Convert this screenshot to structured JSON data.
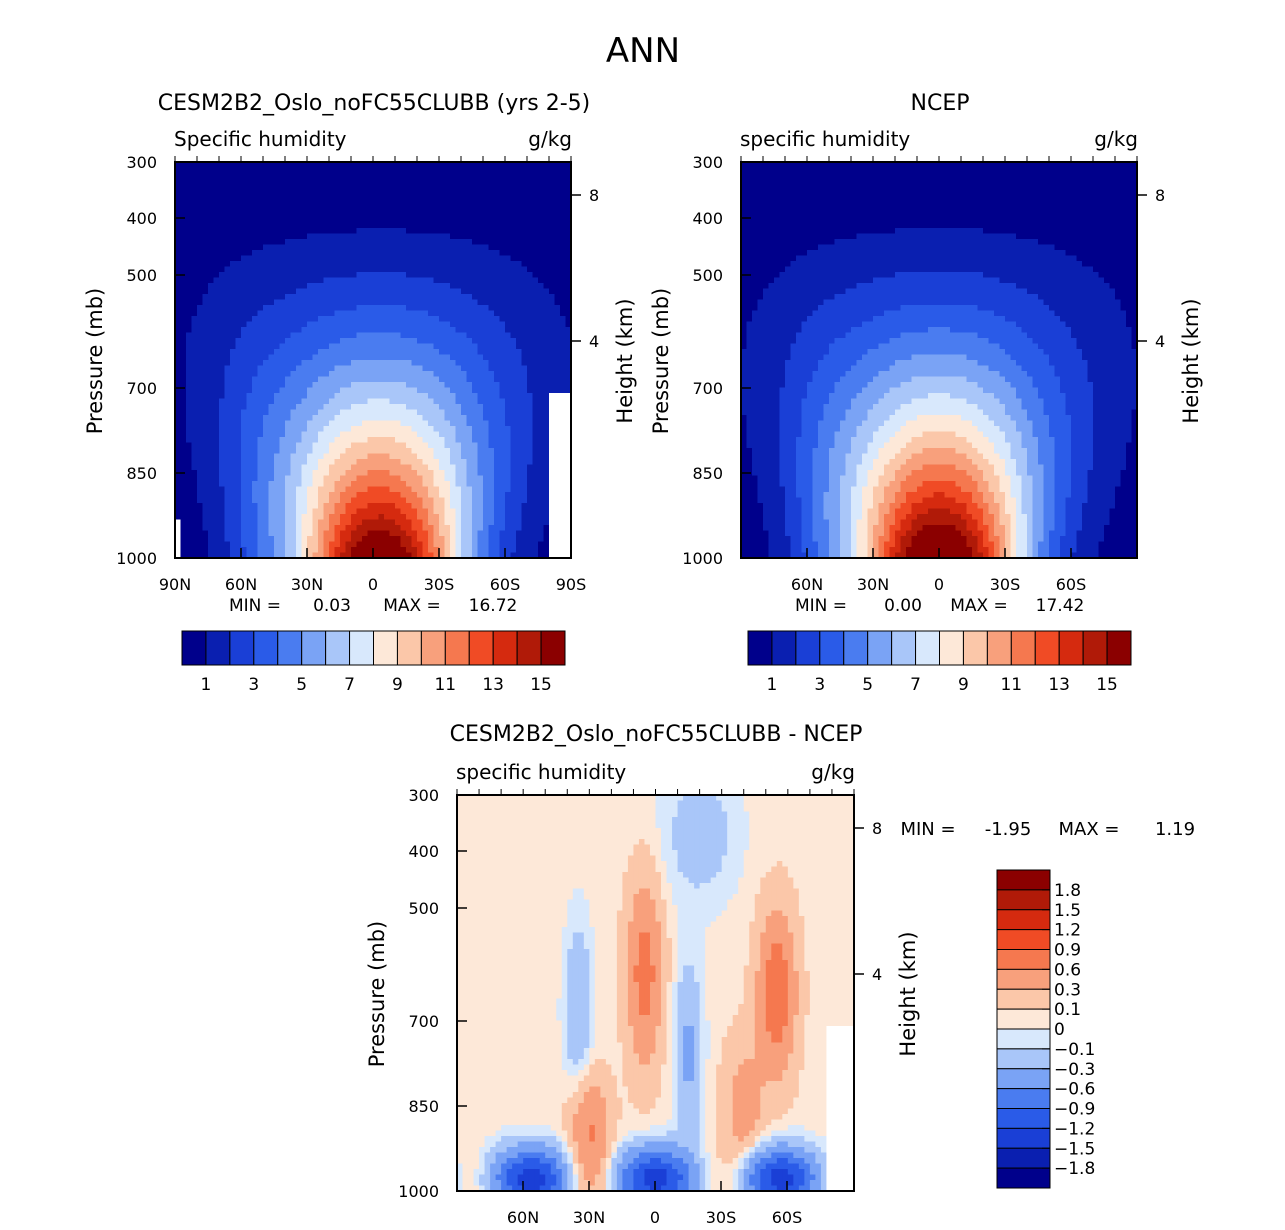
{
  "page_title": "ANN",
  "chart_data": [
    {
      "type": "heatmap",
      "title": "CESM2B2_Oslo_noFC55CLUBB (yrs 2-5)",
      "subtitle_left": "Specific humidity",
      "units": "g/kg",
      "xlabel": "",
      "ylabel": "Pressure (mb)",
      "ylabel_right": "Height (km)",
      "x_ticks": [
        "90N",
        "60N",
        "30N",
        "0",
        "30S",
        "60S",
        "90S"
      ],
      "y_ticks": [
        "300",
        "400",
        "500",
        "700",
        "850",
        "1000"
      ],
      "right_ticks": [
        "8",
        "4"
      ],
      "stats": {
        "min_label": "MIN =",
        "min": "0.03",
        "max_label": "MAX =",
        "max": "16.72"
      },
      "colorbar_labels": [
        "1",
        "3",
        "5",
        "7",
        "9",
        "11",
        "13",
        "15"
      ],
      "field": {
        "peak": 16.72,
        "peak_lat": 3,
        "asym": 0.0
      }
    },
    {
      "type": "heatmap",
      "title": "NCEP",
      "subtitle_left": "specific humidity",
      "units": "g/kg",
      "ylabel": "Pressure (mb)",
      "ylabel_right": "Height (km)",
      "x_ticks": [
        "60N",
        "30N",
        "0",
        "30S",
        "60S"
      ],
      "y_ticks": [
        "300",
        "400",
        "500",
        "700",
        "850",
        "1000"
      ],
      "right_ticks": [
        "8",
        "4"
      ],
      "stats": {
        "min_label": "MIN =",
        "min": "0.00",
        "max_label": "MAX =",
        "max": "17.42"
      },
      "colorbar_labels": [
        "1",
        "3",
        "5",
        "7",
        "9",
        "11",
        "13",
        "15"
      ],
      "field": {
        "peak": 17.42,
        "peak_lat": 0,
        "asym": 0.0
      }
    },
    {
      "type": "heatmap",
      "title": "CESM2B2_Oslo_noFC55CLUBB - NCEP",
      "subtitle_left": "specific humidity",
      "units": "g/kg",
      "ylabel": "Pressure (mb)",
      "ylabel_right": "Height (km)",
      "x_ticks": [
        "60N",
        "30N",
        "0",
        "30S",
        "60S"
      ],
      "y_ticks": [
        "300",
        "400",
        "500",
        "700",
        "850",
        "1000"
      ],
      "right_ticks": [
        "8",
        "4"
      ],
      "stats": {
        "min_label": "MIN =",
        "min": "-1.95",
        "max_label": "MAX =",
        "max": "1.19"
      },
      "colorbar_labels": [
        "1.8",
        "1.5",
        "1.2",
        "0.9",
        "0.6",
        "0.3",
        "0.1",
        "0",
        "-0.1",
        "-0.3",
        "-0.6",
        "-0.9",
        "-1.2",
        "-1.5",
        "-1.8"
      ]
    }
  ],
  "colors": {
    "abs_scale": [
      "#00008b",
      "#0a1fb0",
      "#1a3fd6",
      "#2a5be8",
      "#4a7cf0",
      "#7aa3f5",
      "#a9c6f9",
      "#d8e8fc",
      "#fde8d8",
      "#fbc7a9",
      "#f8a07c",
      "#f5784f",
      "#f04b25",
      "#d52a0f",
      "#b01a08",
      "#8b0000"
    ],
    "diff_scale": [
      "#8b0000",
      "#b01a08",
      "#d52a0f",
      "#f04b25",
      "#f5784f",
      "#f8a07c",
      "#fbc7a9",
      "#fde8d8",
      "#d8e8fc",
      "#a9c6f9",
      "#7aa3f5",
      "#4a7cf0",
      "#2a5be8",
      "#1a3fd6",
      "#0a1fb0",
      "#00008b"
    ]
  }
}
